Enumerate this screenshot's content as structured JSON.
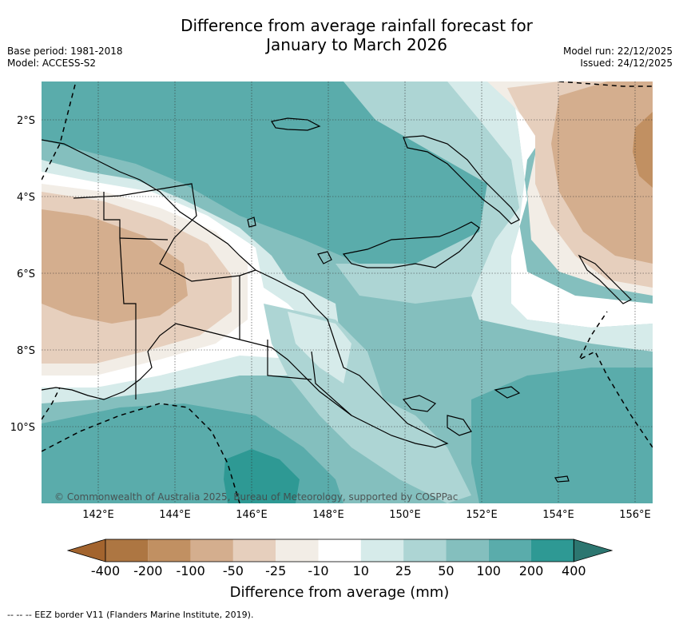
{
  "title_line1": "Difference from average rainfall forecast for",
  "title_line2": "January to March 2026",
  "meta_left": {
    "base_period": "Base period: 1981-2018",
    "model": "Model: ACCESS-S2"
  },
  "meta_right": {
    "model_run": "Model run: 22/12/2025",
    "issued": "Issued: 24/12/2025"
  },
  "map": {
    "lat_labels": [
      "2°S",
      "4°S",
      "6°S",
      "8°S",
      "10°S"
    ],
    "lon_labels": [
      "142°E",
      "144°E",
      "146°E",
      "148°E",
      "150°E",
      "152°E",
      "154°E",
      "156°E"
    ],
    "watermark": "© Commonwealth of Australia 2025, Bureau of Meteorology, supported by COSPPac",
    "colors": {
      "below_200": "#AD7642",
      "below_100": "#C19062",
      "below_50": "#D4AE8E",
      "below_25": "#E6CFBD",
      "below_10": "#F2EDE6",
      "neutral": "#FFFFFF",
      "above_10": "#D6EBEA",
      "above_25": "#ADD5D4",
      "above_50": "#84BFBE",
      "above_100": "#5AACAB",
      "above_200": "#2E9994",
      "under_range": "#A3642E",
      "over_range": "#2C7670"
    }
  },
  "colorbar": {
    "ticks": [
      "-400",
      "-200",
      "-100",
      "-50",
      "-25",
      "-10",
      "10",
      "25",
      "50",
      "100",
      "200",
      "400"
    ],
    "label": "Difference from average (mm)"
  },
  "footer": "--  --  -- EEZ border V11 (Flanders Marine Institute, 2019)."
}
